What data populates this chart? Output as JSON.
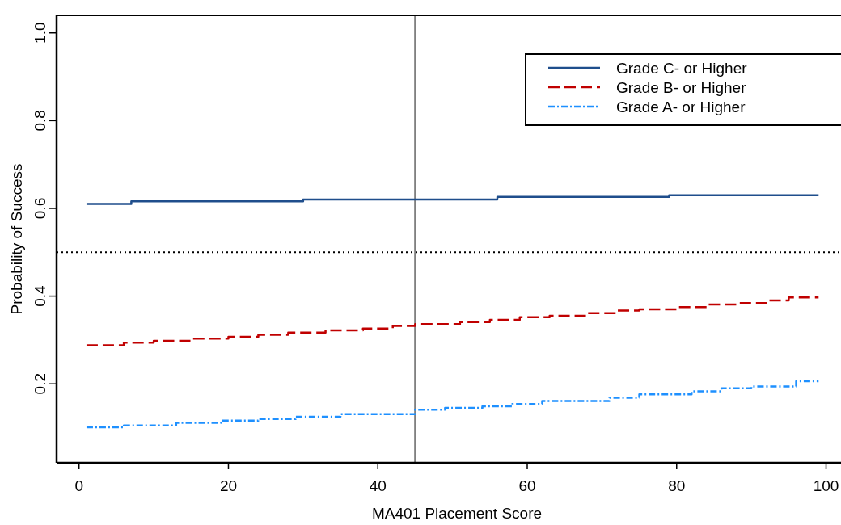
{
  "chart_data": {
    "type": "step",
    "xlabel": "MA401 Placement Score",
    "ylabel": "Probability of Success",
    "xlim": [
      -3,
      102
    ],
    "xticks": [
      0,
      20,
      40,
      60,
      80,
      100
    ],
    "ylim": [
      0.02,
      1.04
    ],
    "yticks": [
      0.2,
      0.4,
      0.6,
      0.8,
      {
        "value": 1,
        "label": "1.0"
      }
    ],
    "grid": false,
    "legend": "top right",
    "ref_lines": [
      {
        "axis": "y",
        "value": 0.5,
        "color": "#000000",
        "line_style": "dotted"
      },
      {
        "axis": "x",
        "value": 45,
        "color": "#808080",
        "line_style": "solid"
      }
    ],
    "series": [
      {
        "name": "Grade C- or Higher",
        "color": "#1f4e8c",
        "line_style": "solid",
        "x": [
          1,
          7,
          30,
          56,
          79,
          99
        ],
        "values": [
          0.61,
          0.616,
          0.62,
          0.626,
          0.63,
          0.63
        ]
      },
      {
        "name": "Grade B- or Higher",
        "color": "#c00000",
        "line_style": "dashed",
        "x": [
          1,
          6,
          10,
          15,
          20,
          24,
          28,
          33,
          38,
          42,
          45,
          51,
          55,
          59,
          63,
          68,
          72,
          75,
          80,
          84,
          88,
          92,
          95,
          99
        ],
        "values": [
          0.288,
          0.294,
          0.298,
          0.303,
          0.307,
          0.312,
          0.317,
          0.322,
          0.326,
          0.332,
          0.336,
          0.341,
          0.346,
          0.352,
          0.355,
          0.361,
          0.367,
          0.37,
          0.375,
          0.381,
          0.384,
          0.39,
          0.397,
          0.397
        ]
      },
      {
        "name": "Grade A- or Higher",
        "color": "#1e90ff",
        "line_style": "dashdot",
        "x": [
          1,
          6,
          13,
          19,
          24,
          29,
          35,
          45,
          49,
          54,
          58,
          62,
          71,
          75,
          82,
          86,
          90,
          96,
          99
        ],
        "values": [
          0.101,
          0.105,
          0.111,
          0.116,
          0.12,
          0.125,
          0.131,
          0.141,
          0.145,
          0.149,
          0.154,
          0.161,
          0.168,
          0.176,
          0.183,
          0.19,
          0.194,
          0.206,
          0.206
        ]
      }
    ]
  }
}
